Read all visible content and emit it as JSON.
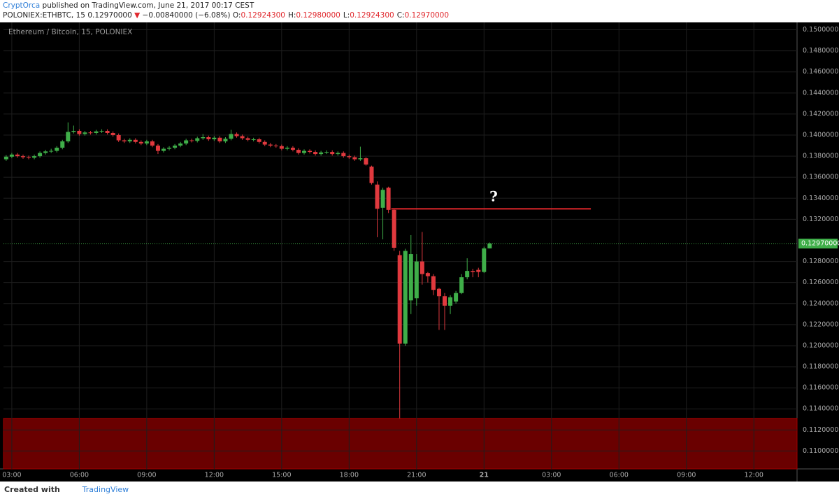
{
  "header": {
    "author": "CryptOrca",
    "published": "published on TradingView.com, June 21, 2017 00:17 CEST",
    "symbol": "POLONIEX:ETHBTC, 15",
    "last": "0.12970000",
    "arrow": "▼",
    "change": "−0.00840000 (−6.08%)",
    "fields": [
      {
        "label": "O:",
        "value": "0.12924300"
      },
      {
        "label": "H:",
        "value": "0.12980000"
      },
      {
        "label": "L:",
        "value": "0.12924300"
      },
      {
        "label": "C:",
        "value": "0.12970000"
      }
    ]
  },
  "footer": {
    "created": "Created with",
    "brand": "TradingView"
  },
  "chart_data": {
    "type": "candlestick",
    "title": "Ethereum / Bitcoin, 15, POLONIEX",
    "up_color": "#3fae49",
    "down_color": "#e0393e",
    "grid": true,
    "xlim": [
      2.63,
      37.92
    ],
    "ylim": [
      0.1083,
      0.1507
    ],
    "xticks": [
      {
        "value": 3,
        "label": "03:00"
      },
      {
        "value": 6,
        "label": "06:00"
      },
      {
        "value": 9,
        "label": "09:00"
      },
      {
        "value": 12,
        "label": "12:00"
      },
      {
        "value": 15,
        "label": "15:00"
      },
      {
        "value": 18,
        "label": "18:00"
      },
      {
        "value": 21,
        "label": "21:00"
      },
      {
        "value": 24,
        "label": "21"
      },
      {
        "value": 27,
        "label": "03:00"
      },
      {
        "value": 30,
        "label": "06:00"
      },
      {
        "value": 33,
        "label": "09:00"
      },
      {
        "value": 36,
        "label": "12:00"
      }
    ],
    "yticks": [
      {
        "value": 0.11,
        "label": "0.11000000"
      },
      {
        "value": 0.112,
        "label": "0.11200000"
      },
      {
        "value": 0.114,
        "label": "0.11400000"
      },
      {
        "value": 0.116,
        "label": "0.11600000"
      },
      {
        "value": 0.118,
        "label": "0.11800000"
      },
      {
        "value": 0.12,
        "label": "0.12000000"
      },
      {
        "value": 0.122,
        "label": "0.12200000"
      },
      {
        "value": 0.124,
        "label": "0.12400000"
      },
      {
        "value": 0.126,
        "label": "0.12600000"
      },
      {
        "value": 0.128,
        "label": "0.12800000"
      },
      {
        "value": 0.132,
        "label": "0.13200000"
      },
      {
        "value": 0.134,
        "label": "0.13400000"
      },
      {
        "value": 0.136,
        "label": "0.13600000"
      },
      {
        "value": 0.138,
        "label": "0.13800000"
      },
      {
        "value": 0.14,
        "label": "0.14000000"
      },
      {
        "value": 0.142,
        "label": "0.14200000"
      },
      {
        "value": 0.144,
        "label": "0.14400000"
      },
      {
        "value": 0.146,
        "label": "0.14600000"
      },
      {
        "value": 0.148,
        "label": "0.14800000"
      },
      {
        "value": 0.15,
        "label": "0.15000000"
      }
    ],
    "x": [
      2.75,
      3,
      3.25,
      3.5,
      3.75,
      4,
      4.25,
      4.5,
      4.75,
      5,
      5.25,
      5.5,
      5.75,
      6,
      6.25,
      6.5,
      6.75,
      7,
      7.25,
      7.5,
      7.75,
      8,
      8.25,
      8.5,
      8.75,
      9,
      9.25,
      9.5,
      9.75,
      10,
      10.25,
      10.5,
      10.75,
      11,
      11.25,
      11.5,
      11.75,
      12,
      12.25,
      12.5,
      12.75,
      13,
      13.25,
      13.5,
      13.75,
      14,
      14.25,
      14.5,
      14.75,
      15,
      15.25,
      15.5,
      15.75,
      16,
      16.25,
      16.5,
      16.75,
      17,
      17.25,
      17.5,
      17.75,
      18,
      18.25,
      18.5,
      18.75,
      19,
      19.25,
      19.5,
      19.75,
      20,
      20.25,
      20.5,
      20.75,
      21,
      21.25,
      21.5,
      21.75,
      22,
      22.25,
      22.5,
      22.75,
      23,
      23.25,
      23.5,
      23.75,
      24,
      24.25
    ],
    "open": [
      0.1377,
      0.13795,
      0.13815,
      0.138,
      0.1379,
      0.13785,
      0.138,
      0.1383,
      0.13845,
      0.1385,
      0.1388,
      0.1394,
      0.1403,
      0.1404,
      0.1401,
      0.14025,
      0.1402,
      0.14035,
      0.1404,
      0.1402,
      0.14,
      0.1395,
      0.1394,
      0.13955,
      0.13935,
      0.1392,
      0.1394,
      0.139,
      0.1385,
      0.1387,
      0.1388,
      0.139,
      0.1392,
      0.1395,
      0.13945,
      0.1397,
      0.1398,
      0.1396,
      0.13975,
      0.1394,
      0.13965,
      0.1401,
      0.1399,
      0.1397,
      0.13955,
      0.1396,
      0.13935,
      0.1391,
      0.139,
      0.13895,
      0.1387,
      0.1388,
      0.1386,
      0.1383,
      0.1385,
      0.1384,
      0.1382,
      0.13835,
      0.1384,
      0.1382,
      0.1383,
      0.138,
      0.1379,
      0.1377,
      0.1378,
      0.137,
      0.1353,
      0.1331,
      0.135,
      0.1329,
      0.1286,
      0.1202,
      0.1243,
      0.1245,
      0.128,
      0.1269,
      0.1266,
      0.1254,
      0.1247,
      0.1238,
      0.1242,
      0.125,
      0.1265,
      0.1271,
      0.1272,
      0.127,
      0.129243
    ],
    "high": [
      0.1381,
      0.1383,
      0.1383,
      0.13815,
      0.13805,
      0.13815,
      0.13845,
      0.1386,
      0.1387,
      0.13895,
      0.13955,
      0.1412,
      0.1409,
      0.14055,
      0.1404,
      0.1404,
      0.1405,
      0.14055,
      0.14055,
      0.14035,
      0.14015,
      0.13965,
      0.1397,
      0.1397,
      0.1395,
      0.13955,
      0.13955,
      0.13915,
      0.13885,
      0.13895,
      0.13915,
      0.13935,
      0.13965,
      0.13965,
      0.13985,
      0.1401,
      0.13995,
      0.1399,
      0.1399,
      0.1398,
      0.1405,
      0.14025,
      0.14005,
      0.13985,
      0.13975,
      0.13975,
      0.1395,
      0.13925,
      0.13915,
      0.1391,
      0.13895,
      0.13895,
      0.13875,
      0.13865,
      0.13865,
      0.13855,
      0.1385,
      0.13855,
      0.13855,
      0.13845,
      0.13845,
      0.13815,
      0.13805,
      0.1389,
      0.1379,
      0.1371,
      0.1356,
      0.135,
      0.1351,
      0.133,
      0.129,
      0.1292,
      0.1305,
      0.1287,
      0.1308,
      0.127,
      0.1268,
      0.1255,
      0.125,
      0.1248,
      0.1252,
      0.1268,
      0.1283,
      0.1273,
      0.1274,
      0.1294,
      0.1298
    ],
    "low": [
      0.13755,
      0.1378,
      0.13785,
      0.13775,
      0.1377,
      0.1377,
      0.13785,
      0.13815,
      0.1383,
      0.13835,
      0.13865,
      0.13925,
      0.14015,
      0.13995,
      0.13995,
      0.14005,
      0.14005,
      0.1402,
      0.14005,
      0.13985,
      0.13935,
      0.13925,
      0.13925,
      0.1392,
      0.13905,
      0.13905,
      0.13885,
      0.1382,
      0.13835,
      0.13855,
      0.13865,
      0.13885,
      0.13905,
      0.1393,
      0.1393,
      0.13955,
      0.13945,
      0.13945,
      0.13925,
      0.13925,
      0.1395,
      0.13975,
      0.13955,
      0.1394,
      0.1394,
      0.1392,
      0.13895,
      0.13885,
      0.1388,
      0.13855,
      0.13855,
      0.13845,
      0.13815,
      0.13815,
      0.13825,
      0.13805,
      0.13805,
      0.1382,
      0.13805,
      0.13805,
      0.13785,
      0.13775,
      0.13755,
      0.13755,
      0.1371,
      0.1353,
      0.1303,
      0.1301,
      0.1326,
      0.129,
      0.1131,
      0.12,
      0.123,
      0.1238,
      0.1258,
      0.126,
      0.1248,
      0.1215,
      0.1215,
      0.123,
      0.124,
      0.1249,
      0.1263,
      0.1265,
      0.1265,
      0.1269,
      0.129243
    ],
    "close": [
      0.13795,
      0.13815,
      0.138,
      0.1379,
      0.13785,
      0.138,
      0.1383,
      0.13845,
      0.1385,
      0.1388,
      0.1394,
      0.1403,
      0.1404,
      0.1401,
      0.14025,
      0.1402,
      0.14035,
      0.1404,
      0.1402,
      0.14,
      0.1395,
      0.1394,
      0.13955,
      0.13935,
      0.1392,
      0.1394,
      0.139,
      0.1385,
      0.1387,
      0.1388,
      0.139,
      0.1392,
      0.1395,
      0.13945,
      0.1397,
      0.1398,
      0.1396,
      0.13975,
      0.1394,
      0.13965,
      0.1401,
      0.1399,
      0.1397,
      0.13955,
      0.1396,
      0.13935,
      0.1391,
      0.139,
      0.13895,
      0.1387,
      0.1388,
      0.1386,
      0.1383,
      0.1385,
      0.1384,
      0.1382,
      0.13835,
      0.1384,
      0.1382,
      0.1383,
      0.138,
      0.1379,
      0.1377,
      0.1378,
      0.1372,
      0.13545,
      0.133,
      0.1348,
      0.1329,
      0.1293,
      0.1202,
      0.129,
      0.1287,
      0.128,
      0.1268,
      0.1266,
      0.1253,
      0.1247,
      0.1238,
      0.1246,
      0.125,
      0.1265,
      0.1271,
      0.127,
      0.127,
      0.12924,
      0.1297
    ],
    "last_price": {
      "value": 0.1297,
      "label": "0.12970000",
      "color": "#3fae49"
    },
    "resistance": {
      "value": 0.133,
      "x": [
        19.875,
        28.75
      ],
      "color": "#e0262b"
    },
    "annotation": "?",
    "zone_top": 0.1131
  }
}
